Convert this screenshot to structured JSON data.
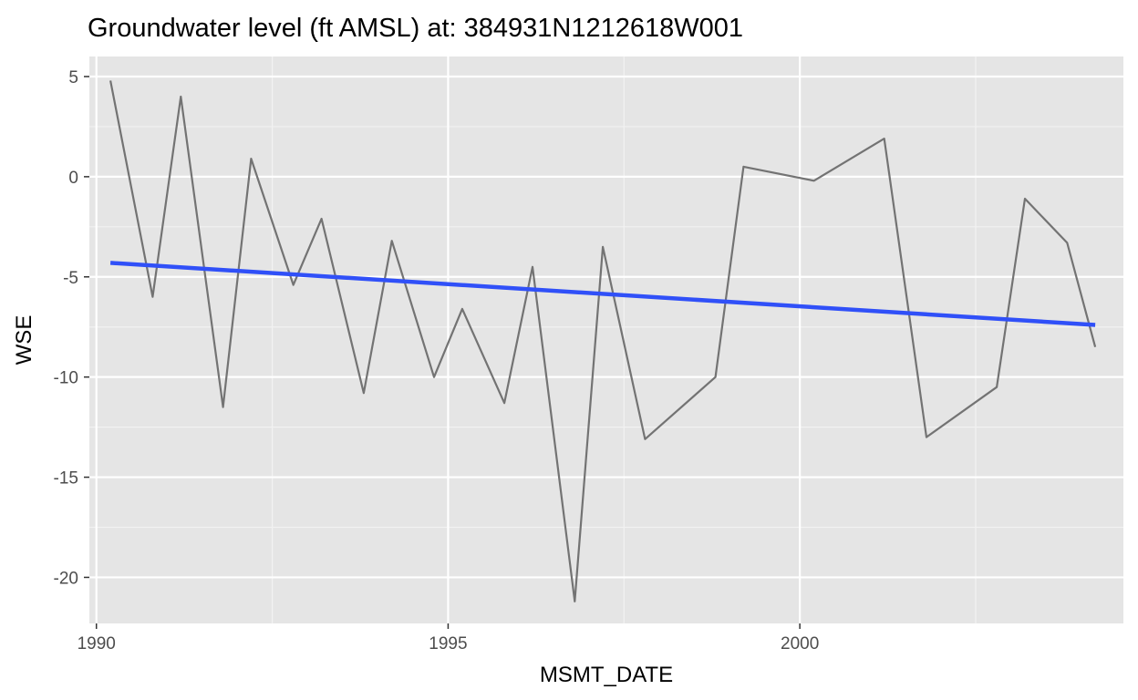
{
  "chart_data": {
    "type": "line",
    "title": "Groundwater level (ft AMSL) at: 384931N1212618W001",
    "xlabel": "MSMT_DATE",
    "ylabel": "WSE",
    "xlim": [
      1989.9,
      2004.6
    ],
    "ylim": [
      -22.3,
      6.0
    ],
    "x_ticks": [
      1990,
      1995,
      2000
    ],
    "x_tick_labels": [
      "1990",
      "1995",
      "2000"
    ],
    "y_ticks": [
      5,
      0,
      -5,
      -10,
      -15,
      -20
    ],
    "y_tick_labels": [
      "5",
      "0",
      "-5",
      "-10",
      "-15",
      "-20"
    ],
    "grid": true,
    "panel_background": "#e5e5e5",
    "series": [
      {
        "color": "#737373",
        "points": [
          [
            1990.2,
            4.8
          ],
          [
            1990.8,
            -6.0
          ],
          [
            1991.2,
            4.0
          ],
          [
            1991.8,
            -11.5
          ],
          [
            1992.2,
            0.9
          ],
          [
            1992.8,
            -5.4
          ],
          [
            1993.2,
            -2.1
          ],
          [
            1993.8,
            -10.8
          ],
          [
            1994.2,
            -3.2
          ],
          [
            1994.8,
            -10.0
          ],
          [
            1995.2,
            -6.6
          ],
          [
            1995.8,
            -11.3
          ],
          [
            1996.2,
            -4.5
          ],
          [
            1996.8,
            -21.2
          ],
          [
            1997.2,
            -3.5
          ],
          [
            1997.8,
            -13.1
          ],
          [
            1998.8,
            -10.0
          ],
          [
            1999.2,
            0.5
          ],
          [
            2000.2,
            -0.2
          ],
          [
            2001.2,
            1.9
          ],
          [
            2001.8,
            -13.0
          ],
          [
            2002.8,
            -10.5
          ],
          [
            2003.2,
            -1.1
          ],
          [
            2003.8,
            -3.3
          ],
          [
            2004.2,
            -8.5
          ]
        ]
      },
      {
        "color": "#3050f8",
        "points": [
          [
            1990.2,
            -4.3
          ],
          [
            2004.2,
            -7.4
          ]
        ]
      }
    ]
  }
}
